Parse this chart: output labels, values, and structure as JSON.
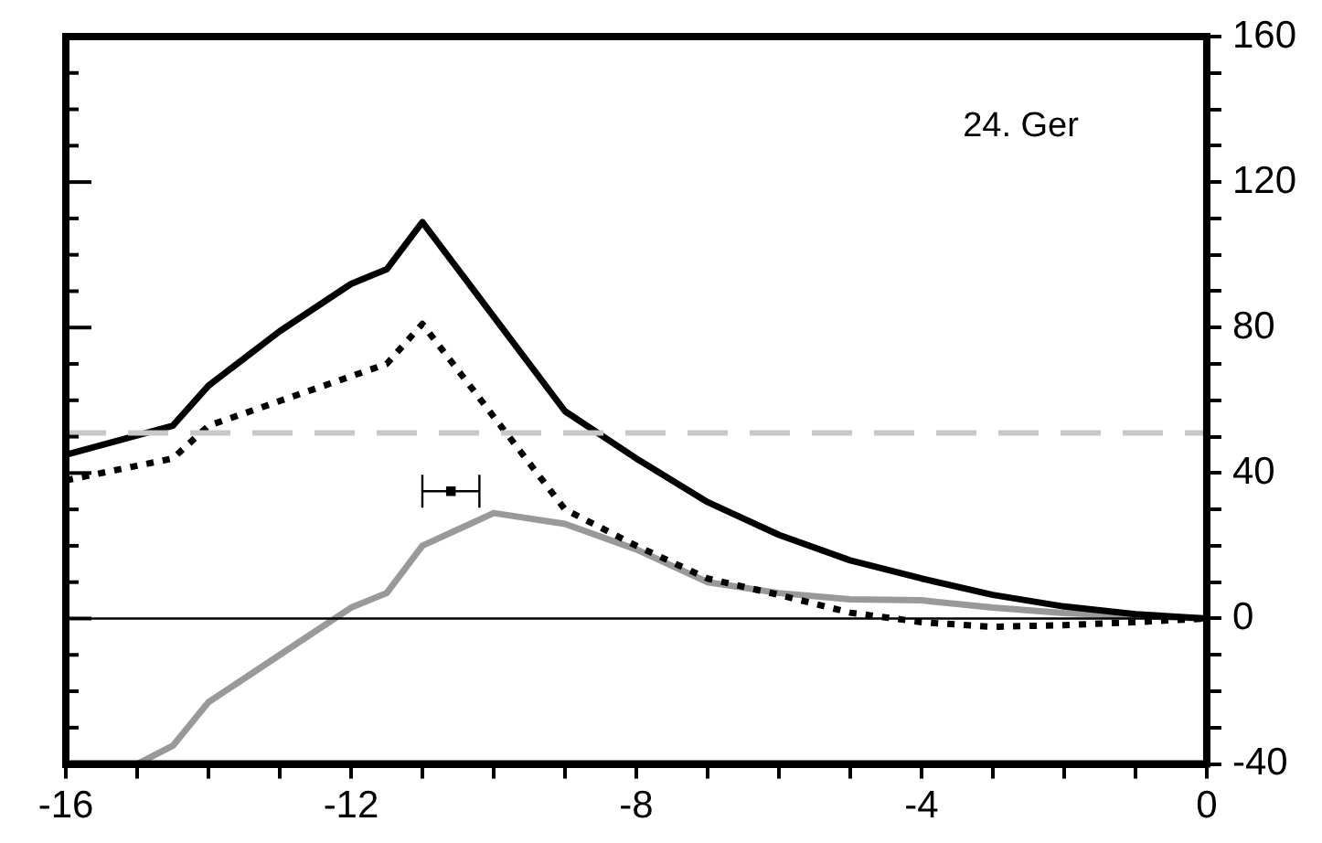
{
  "chart_data": {
    "type": "line",
    "annotations": [
      "24. Ger"
    ],
    "xlim": [
      -16,
      0
    ],
    "xticks": [
      -16,
      {
        "value": -15,
        "label": null
      },
      {
        "value": -14,
        "label": null
      },
      {
        "value": -13,
        "label": null
      },
      -12,
      {
        "value": -11,
        "label": null
      },
      {
        "value": -10,
        "label": null
      },
      {
        "value": -9,
        "label": null
      },
      -8,
      {
        "value": -7,
        "label": null
      },
      {
        "value": -6,
        "label": null
      },
      {
        "value": -5,
        "label": null
      },
      -4,
      {
        "value": -3,
        "label": null
      },
      {
        "value": -2,
        "label": null
      },
      {
        "value": -1,
        "label": null
      },
      0
    ],
    "ylim": [
      -40,
      160
    ],
    "yticks": [
      -40,
      {
        "value": -30,
        "label": null
      },
      {
        "value": -20,
        "label": null
      },
      {
        "value": -10,
        "label": null
      },
      0,
      {
        "value": 10,
        "label": null
      },
      {
        "value": 20,
        "label": null
      },
      {
        "value": 30,
        "label": null
      },
      40,
      {
        "value": 50,
        "label": null
      },
      {
        "value": 60,
        "label": null
      },
      {
        "value": 70,
        "label": null
      },
      80,
      {
        "value": 90,
        "label": null
      },
      {
        "value": 100,
        "label": null
      },
      {
        "value": 110,
        "label": null
      },
      120,
      {
        "value": 130,
        "label": null
      },
      {
        "value": 140,
        "label": null
      },
      {
        "value": 150,
        "label": null
      },
      160
    ],
    "grid": false,
    "legend": false,
    "marker": "none",
    "ref_lines": [
      {
        "axis": "y",
        "value": 0,
        "color": "#000000",
        "line_style": "solid"
      },
      {
        "axis": "y",
        "value": 51,
        "color": "#c8c8c8",
        "line_style": "dashed"
      }
    ],
    "series": [
      {
        "color": "#000000",
        "line_style": "solid",
        "x": [
          -16,
          -14.5,
          -14,
          -13,
          -12,
          -11.5,
          -11,
          -9,
          -8,
          -7,
          -6,
          -5,
          -4,
          -3,
          -2,
          -1,
          0
        ],
        "values": [
          45,
          53,
          64,
          79,
          92,
          96,
          109,
          57,
          44,
          32,
          23,
          16,
          11,
          6.5,
          3.3,
          1.2,
          0
        ]
      },
      {
        "color": "#000000",
        "line_style": "dotted",
        "x": [
          -16,
          -14.5,
          -14,
          -11.5,
          -11,
          -9,
          -8,
          -7,
          -6,
          -5,
          -4,
          -3,
          -2,
          -1,
          0
        ],
        "values": [
          38,
          44,
          53,
          70,
          81,
          30,
          20,
          11,
          6.5,
          1.6,
          -1,
          -2.3,
          -1.8,
          -1,
          0
        ]
      },
      {
        "color": "#999999",
        "line_style": "solid",
        "x": [
          -15,
          -14.5,
          -14,
          -13,
          -12,
          -11.5,
          -11,
          -10,
          -9,
          -8,
          -7,
          -6,
          -5,
          -4,
          -3,
          -2,
          -1,
          0
        ],
        "values": [
          -40,
          -35,
          -23,
          -10,
          3,
          7,
          20,
          29,
          26,
          19,
          10,
          7,
          5.3,
          5,
          3,
          1.5,
          0.7,
          0
        ]
      },
      {
        "type": "scatter",
        "marker": "square",
        "color": "#000000",
        "x": [
          -10.6
        ],
        "values": [
          35
        ],
        "xerrors": [
          [
            -11,
            -10.2
          ]
        ]
      }
    ]
  }
}
